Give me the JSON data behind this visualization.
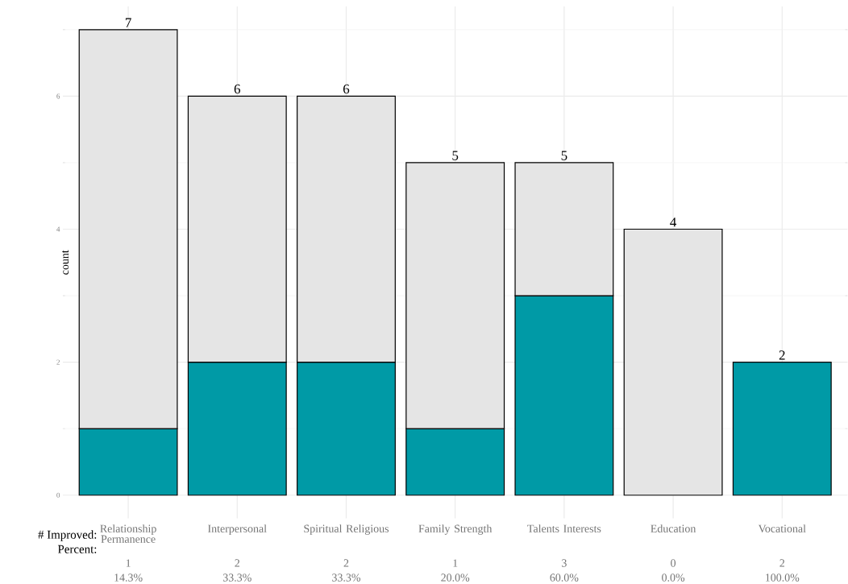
{
  "chart_data": {
    "type": "bar",
    "stacked": true,
    "ylabel": "count",
    "categories": [
      "Relationship Permanence",
      "Interpersonal",
      "Spiritual Religious",
      "Family Strength",
      "Talents Interests",
      "Education",
      "Vocational"
    ],
    "series": [
      {
        "color": "#009aa6",
        "values": [
          1,
          2,
          2,
          1,
          3,
          0,
          2
        ],
        "value_labels": [
          "1",
          "2",
          "2",
          "1",
          "3",
          "0",
          "2"
        ]
      },
      {
        "color": "#e5e5e5",
        "values": [
          6,
          4,
          4,
          4,
          2,
          4,
          0
        ]
      }
    ],
    "totals": [
      "7",
      "6",
      "6",
      "5",
      "5",
      "4",
      "2"
    ],
    "annotations": [
      "# Improved:",
      "Percent:",
      "14.3%",
      "33.3%",
      "33.3%",
      "20.0%",
      "60.0%",
      "0.0%",
      "100.0%"
    ],
    "ylim": [
      -0.35,
      7.35
    ],
    "yticks": [
      0,
      2,
      4,
      6
    ],
    "grid": true,
    "legend": false
  }
}
